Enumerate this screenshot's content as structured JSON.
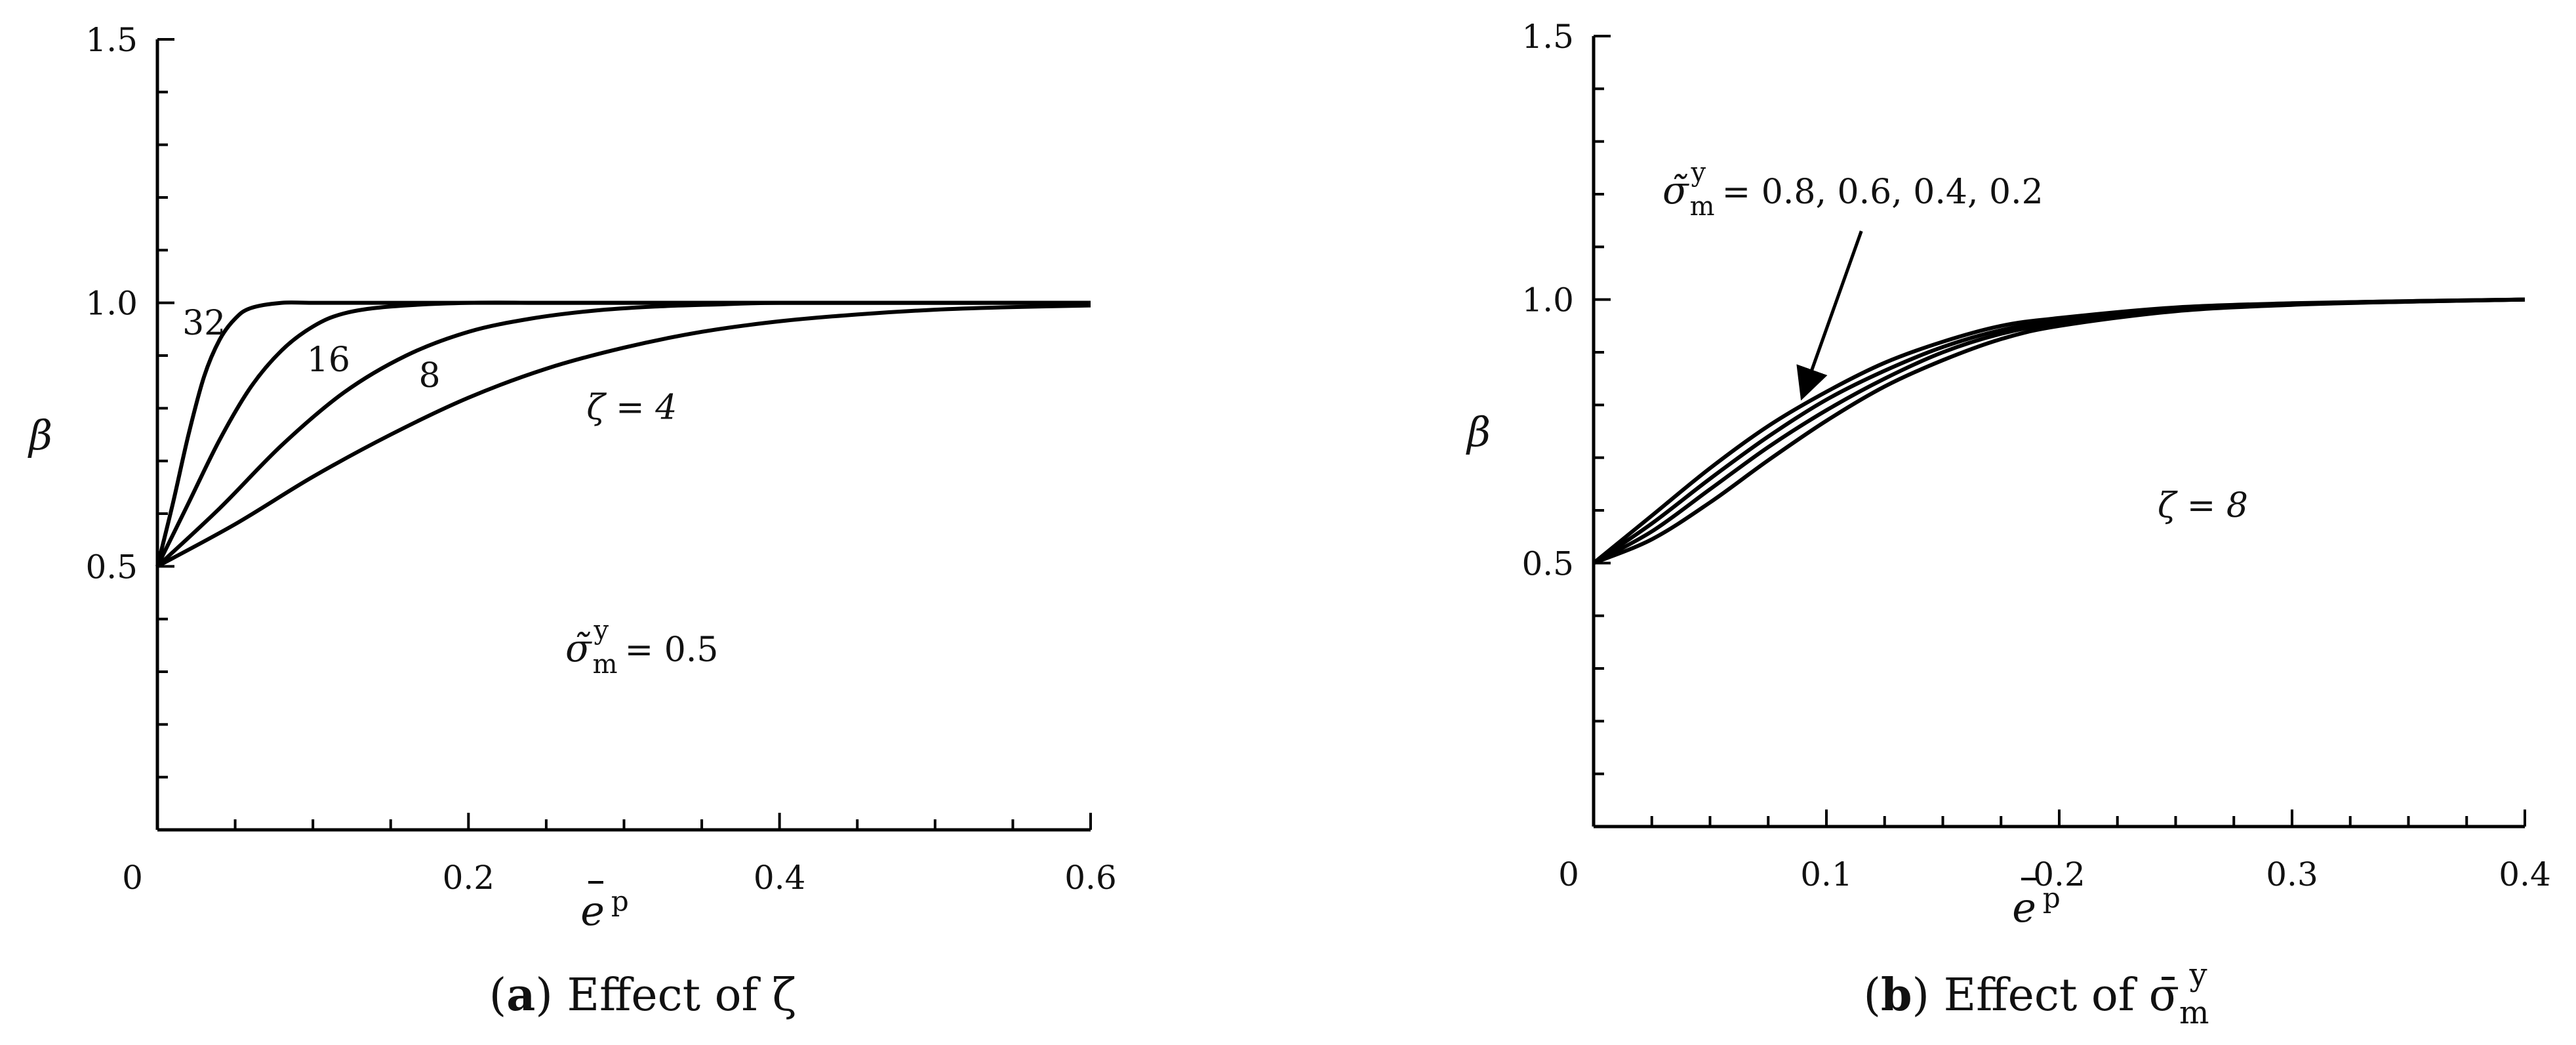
{
  "chart_data": [
    {
      "type": "line",
      "panel_letter": "a",
      "caption": "Effect of ζ",
      "xlabel": "e",
      "xlabel_sup": "p",
      "ylabel": "β",
      "xlim": [
        0,
        0.6
      ],
      "ylim": [
        0,
        1.5
      ],
      "x_ticks": [
        "0",
        "0.2",
        "0.4",
        "0.6"
      ],
      "x_tick_values": [
        0,
        0.2,
        0.4,
        0.6
      ],
      "y_ticks": [
        "0.5",
        "1.0",
        "1.5"
      ],
      "y_tick_values": [
        0.5,
        1.0,
        1.5
      ],
      "annotation": {
        "text_sigma": "σ̃",
        "sup": "y",
        "sub": "m",
        "rest": " = 0.5"
      },
      "series": [
        {
          "name": "32",
          "x": [
            0,
            0.01,
            0.02,
            0.03,
            0.04,
            0.05,
            0.06,
            0.08,
            0.1,
            0.15,
            0.2,
            0.3,
            0.4,
            0.5,
            0.6
          ],
          "y": [
            0.5,
            0.62,
            0.75,
            0.86,
            0.93,
            0.97,
            0.99,
            1.0,
            1.0,
            1.0,
            1.0,
            1.0,
            1.0,
            1.0,
            1.0
          ]
        },
        {
          "name": "16",
          "x": [
            0,
            0.02,
            0.04,
            0.06,
            0.08,
            0.1,
            0.12,
            0.15,
            0.2,
            0.25,
            0.3,
            0.4,
            0.5,
            0.6
          ],
          "y": [
            0.5,
            0.62,
            0.74,
            0.84,
            0.91,
            0.955,
            0.98,
            0.993,
            1.0,
            1.0,
            1.0,
            1.0,
            1.0,
            1.0
          ]
        },
        {
          "name": "8",
          "x": [
            0,
            0.04,
            0.08,
            0.12,
            0.16,
            0.2,
            0.24,
            0.28,
            0.32,
            0.36,
            0.4,
            0.5,
            0.6
          ],
          "y": [
            0.5,
            0.61,
            0.73,
            0.83,
            0.9,
            0.945,
            0.97,
            0.985,
            0.993,
            0.997,
            1.0,
            1.0,
            1.0
          ]
        },
        {
          "name": "ζ = 4",
          "x": [
            0,
            0.05,
            0.1,
            0.15,
            0.2,
            0.25,
            0.3,
            0.35,
            0.4,
            0.45,
            0.5,
            0.55,
            0.6
          ],
          "y": [
            0.5,
            0.58,
            0.67,
            0.75,
            0.82,
            0.875,
            0.915,
            0.945,
            0.965,
            0.978,
            0.987,
            0.992,
            0.995
          ]
        }
      ],
      "curve_labels": [
        {
          "text": "32",
          "x": 0.03,
          "y": 0.94
        },
        {
          "text": "16",
          "x": 0.11,
          "y": 0.87
        },
        {
          "text": "8",
          "x": 0.175,
          "y": 0.84
        },
        {
          "text": "ζ = 4",
          "x": 0.305,
          "y": 0.78
        }
      ]
    },
    {
      "type": "line",
      "panel_letter": "b",
      "caption": "Effect of σ̄",
      "caption_sup": "y",
      "caption_sub": "m",
      "xlabel": "e",
      "xlabel_sup": "p",
      "ylabel": "β",
      "xlim": [
        0,
        0.4
      ],
      "ylim": [
        0,
        1.5
      ],
      "x_ticks": [
        "0",
        "0.1",
        "0.2",
        "0.3",
        "0.4"
      ],
      "x_tick_values": [
        0,
        0.1,
        0.2,
        0.3,
        0.4
      ],
      "y_ticks": [
        "0.5",
        "1.0",
        "1.5"
      ],
      "y_tick_values": [
        0.5,
        1.0,
        1.5
      ],
      "annotation": {
        "text_sigma": "σ̃",
        "sup": "y",
        "sub": "m",
        "rest": " = 0.8, 0.6, 0.4, 0.2"
      },
      "zeta_label": "ζ = 8",
      "series": [
        {
          "name": "0.8",
          "x": [
            0,
            0.025,
            0.05,
            0.075,
            0.1,
            0.125,
            0.15,
            0.175,
            0.2,
            0.25,
            0.3,
            0.35,
            0.4
          ],
          "y": [
            0.5,
            0.59,
            0.68,
            0.76,
            0.825,
            0.88,
            0.92,
            0.95,
            0.965,
            0.985,
            0.993,
            0.997,
            1.0
          ]
        },
        {
          "name": "0.6",
          "x": [
            0,
            0.025,
            0.05,
            0.075,
            0.1,
            0.125,
            0.15,
            0.175,
            0.2,
            0.25,
            0.3,
            0.35,
            0.4
          ],
          "y": [
            0.5,
            0.575,
            0.66,
            0.74,
            0.81,
            0.865,
            0.91,
            0.942,
            0.96,
            0.982,
            0.992,
            0.997,
            1.0
          ]
        },
        {
          "name": "0.4",
          "x": [
            0,
            0.025,
            0.05,
            0.075,
            0.1,
            0.125,
            0.15,
            0.175,
            0.2,
            0.25,
            0.3,
            0.35,
            0.4
          ],
          "y": [
            0.5,
            0.56,
            0.64,
            0.72,
            0.79,
            0.85,
            0.9,
            0.935,
            0.955,
            0.98,
            0.991,
            0.996,
            1.0
          ]
        },
        {
          "name": "0.2",
          "x": [
            0,
            0.025,
            0.05,
            0.075,
            0.1,
            0.125,
            0.15,
            0.175,
            0.2,
            0.25,
            0.3,
            0.35,
            0.4
          ],
          "y": [
            0.5,
            0.545,
            0.615,
            0.695,
            0.77,
            0.835,
            0.885,
            0.925,
            0.95,
            0.978,
            0.99,
            0.996,
            1.0
          ]
        }
      ],
      "arrow": {
        "from": [
          0.115,
          1.13
        ],
        "to": [
          0.09,
          0.82
        ]
      }
    }
  ]
}
